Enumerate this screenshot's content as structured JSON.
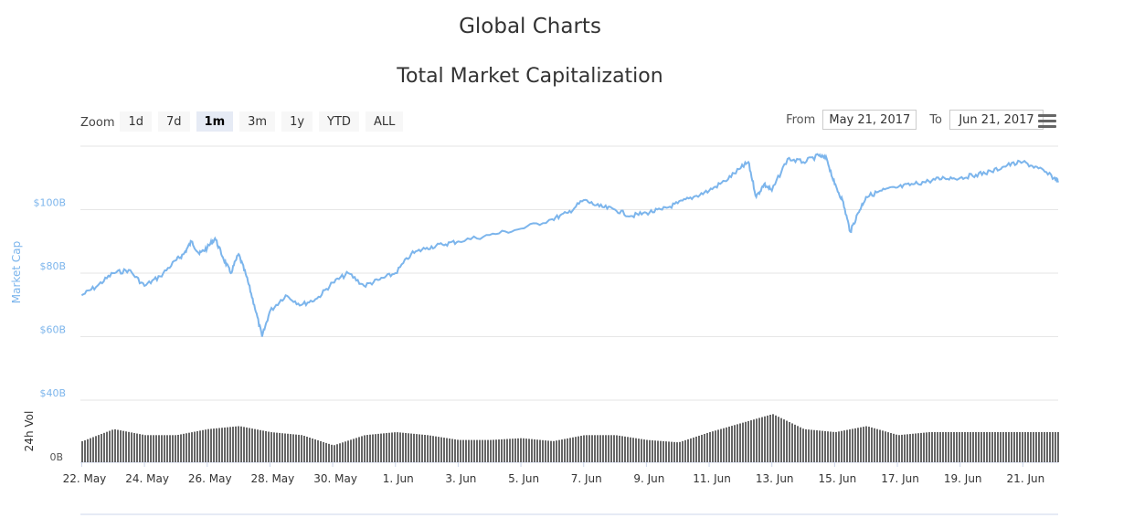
{
  "page": {
    "title": "Global Charts"
  },
  "toolbar": {
    "zoom_label": "Zoom",
    "zoom_buttons": [
      "1d",
      "7d",
      "1m",
      "3m",
      "1y",
      "YTD",
      "ALL"
    ],
    "active_zoom": "1m",
    "from_label": "From",
    "from_value": "May 21, 2017",
    "to_label": "To",
    "to_value": "Jun 21, 2017",
    "menu_icon": "hamburger-icon"
  },
  "chart_data": {
    "type": "line",
    "title": "Total Market Capitalization",
    "ylabel": "Market Cap",
    "y_ticks": [
      "$40B",
      "$60B",
      "$80B",
      "$100B"
    ],
    "ylim": [
      40,
      120
    ],
    "volume_label": "24h Vol",
    "volume_tick": "0B",
    "x_ticks": [
      "22. May",
      "24. May",
      "26. May",
      "28. May",
      "30. May",
      "1. Jun",
      "3. Jun",
      "5. Jun",
      "7. Jun",
      "9. Jun",
      "11. Jun",
      "13. Jun",
      "15. Jun",
      "17. Jun",
      "19. Jun",
      "21. Jun"
    ],
    "xlim": [
      "2017-05-21T23:00",
      "2017-06-22T03:00"
    ],
    "line_color": "#7cb5ec",
    "volume_color": "#666666",
    "series": [
      {
        "name": "Market Cap",
        "x": [
          "2017-05-22T00:00",
          "2017-05-22T12:00",
          "2017-05-23T00:00",
          "2017-05-23T12:00",
          "2017-05-24T00:00",
          "2017-05-24T12:00",
          "2017-05-25T00:00",
          "2017-05-25T06:00",
          "2017-05-25T12:00",
          "2017-05-25T18:00",
          "2017-05-26T00:00",
          "2017-05-26T06:00",
          "2017-05-26T12:00",
          "2017-05-26T18:00",
          "2017-05-27T00:00",
          "2017-05-27T06:00",
          "2017-05-27T12:00",
          "2017-05-27T18:00",
          "2017-05-28T00:00",
          "2017-05-28T12:00",
          "2017-05-29T00:00",
          "2017-05-29T12:00",
          "2017-05-30T00:00",
          "2017-05-30T12:00",
          "2017-05-31T00:00",
          "2017-05-31T12:00",
          "2017-06-01T00:00",
          "2017-06-01T12:00",
          "2017-06-02T00:00",
          "2017-06-02T12:00",
          "2017-06-03T00:00",
          "2017-06-04T00:00",
          "2017-06-05T00:00",
          "2017-06-06T00:00",
          "2017-06-06T12:00",
          "2017-06-07T00:00",
          "2017-06-07T12:00",
          "2017-06-08T00:00",
          "2017-06-08T12:00",
          "2017-06-09T00:00",
          "2017-06-09T12:00",
          "2017-06-10T00:00",
          "2017-06-10T12:00",
          "2017-06-11T00:00",
          "2017-06-11T12:00",
          "2017-06-12T00:00",
          "2017-06-12T06:00",
          "2017-06-12T12:00",
          "2017-06-12T18:00",
          "2017-06-13T00:00",
          "2017-06-13T12:00",
          "2017-06-14T00:00",
          "2017-06-14T12:00",
          "2017-06-14T18:00",
          "2017-06-15T00:00",
          "2017-06-15T06:00",
          "2017-06-15T12:00",
          "2017-06-15T18:00",
          "2017-06-16T00:00",
          "2017-06-16T12:00",
          "2017-06-17T00:00",
          "2017-06-17T12:00",
          "2017-06-18T00:00",
          "2017-06-18T12:00",
          "2017-06-19T00:00",
          "2017-06-19T12:00",
          "2017-06-20T00:00",
          "2017-06-20T12:00",
          "2017-06-21T00:00",
          "2017-06-21T12:00",
          "2017-06-22T00:00",
          "2017-06-22T03:00"
        ],
        "values": [
          73,
          76,
          80,
          81,
          76,
          79,
          84,
          86,
          90,
          86,
          88,
          91,
          85,
          80,
          86,
          79,
          70,
          60,
          68,
          73,
          70,
          72,
          77,
          80,
          76,
          78,
          80,
          86,
          88,
          89,
          90,
          92,
          94,
          97,
          99,
          103,
          101,
          100,
          98,
          99,
          100,
          102,
          104,
          106,
          109,
          113,
          115,
          104,
          108,
          106,
          116,
          115,
          117,
          116,
          108,
          103,
          93,
          99,
          104,
          106,
          107,
          108,
          109,
          110,
          110,
          111,
          112,
          114,
          115,
          113,
          110,
          109
        ]
      }
    ],
    "volume": {
      "x": [
        "2017-05-22T00:00",
        "2017-05-23T00:00",
        "2017-05-24T00:00",
        "2017-05-25T00:00",
        "2017-05-26T00:00",
        "2017-05-27T00:00",
        "2017-05-28T00:00",
        "2017-05-29T00:00",
        "2017-05-30T00:00",
        "2017-05-31T00:00",
        "2017-06-01T00:00",
        "2017-06-02T00:00",
        "2017-06-03T00:00",
        "2017-06-04T00:00",
        "2017-06-05T00:00",
        "2017-06-06T00:00",
        "2017-06-07T00:00",
        "2017-06-08T00:00",
        "2017-06-09T00:00",
        "2017-06-10T00:00",
        "2017-06-11T00:00",
        "2017-06-12T00:00",
        "2017-06-13T00:00",
        "2017-06-14T00:00",
        "2017-06-15T00:00",
        "2017-06-16T00:00",
        "2017-06-17T00:00",
        "2017-06-18T00:00",
        "2017-06-19T00:00",
        "2017-06-20T00:00",
        "2017-06-21T00:00",
        "2017-06-22T03:00"
      ],
      "values": [
        0.35,
        0.55,
        0.45,
        0.45,
        0.55,
        0.6,
        0.5,
        0.45,
        0.28,
        0.45,
        0.5,
        0.45,
        0.37,
        0.37,
        0.4,
        0.35,
        0.45,
        0.45,
        0.37,
        0.33,
        0.5,
        0.65,
        0.8,
        0.55,
        0.5,
        0.6,
        0.45,
        0.5,
        0.5,
        0.5,
        0.5,
        0.5
      ]
    }
  }
}
